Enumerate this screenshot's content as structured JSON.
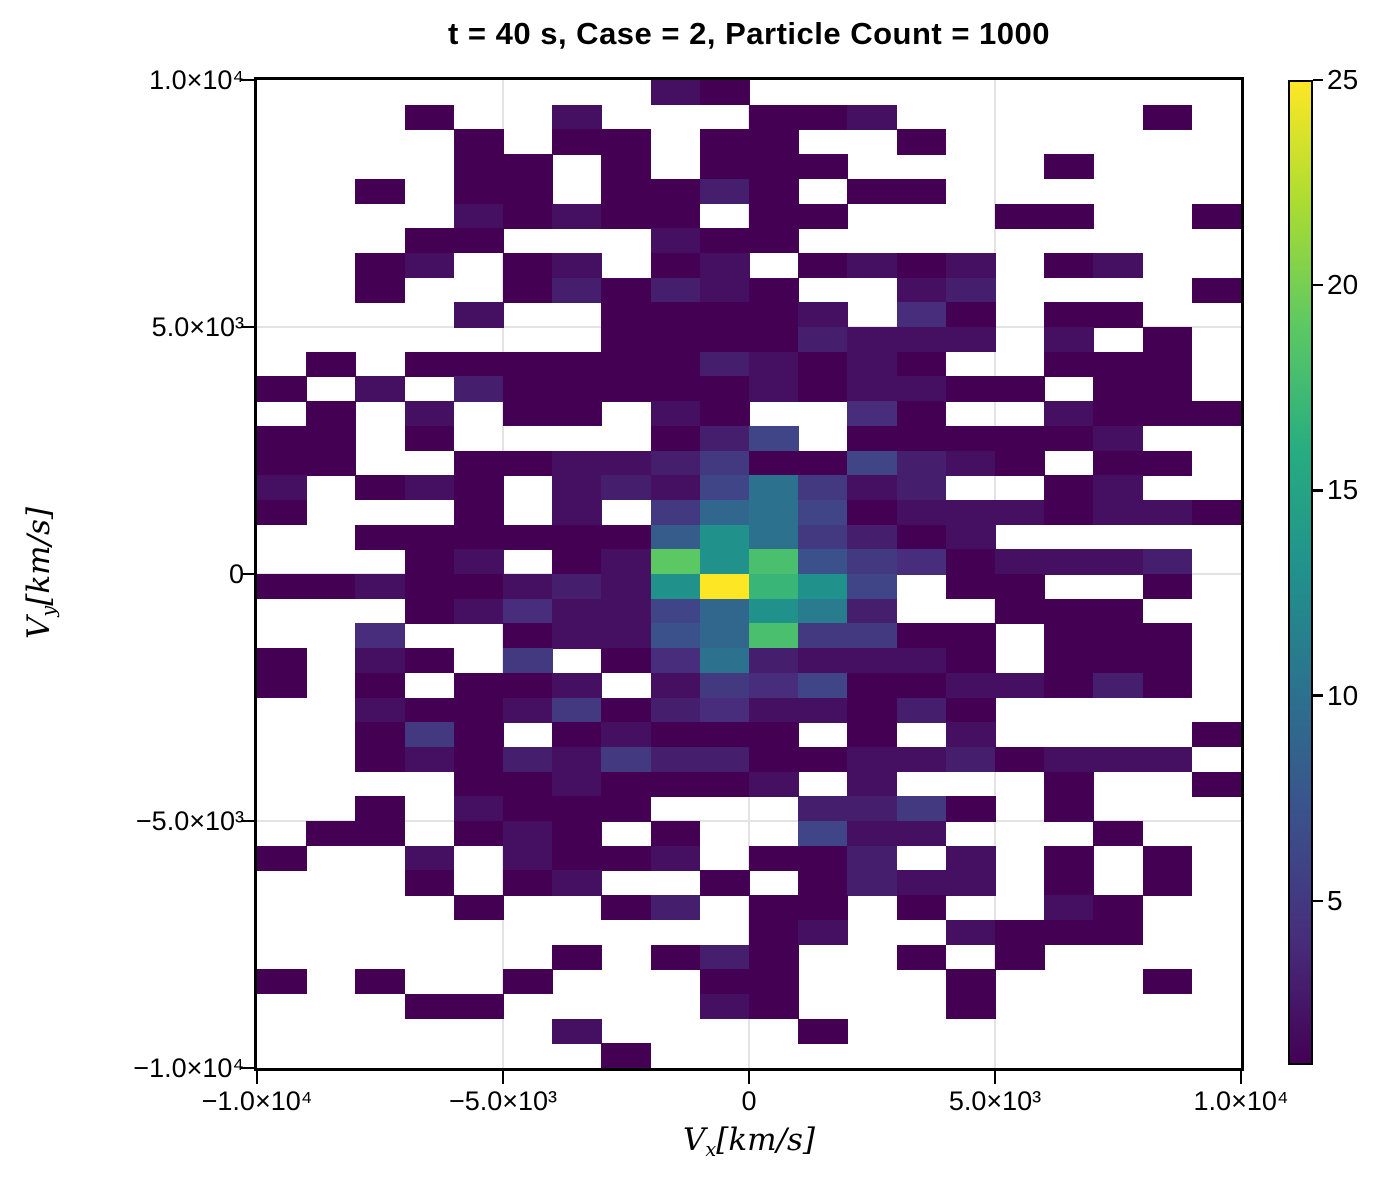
{
  "figure": {
    "title": "t = 40 s, Case = 2, Particle Count = 1000",
    "background": "#ffffff"
  },
  "axes": {
    "x": {
      "var": "V",
      "sub": "x",
      "unit": "[km/s]",
      "ticks": [
        {
          "label": "−1.0×10⁴",
          "value": -10000
        },
        {
          "label": "−5.0×10³",
          "value": -5000
        },
        {
          "label": "0",
          "value": 0
        },
        {
          "label": "5.0×10³",
          "value": 5000
        },
        {
          "label": "1.0×10⁴",
          "value": 10000
        }
      ]
    },
    "y": {
      "var": "V",
      "sub": "y",
      "unit": "[km/s]",
      "ticks": [
        {
          "label": "1.0×10⁴",
          "value": 10000
        },
        {
          "label": "5.0×10³",
          "value": 5000
        },
        {
          "label": "0",
          "value": 0
        },
        {
          "label": "−5.0×10³",
          "value": -5000
        },
        {
          "label": "−1.0×10⁴",
          "value": -10000
        }
      ]
    }
  },
  "colorbar": {
    "min": 1,
    "max": 25,
    "tick_values": [
      25,
      20,
      15,
      10,
      5
    ],
    "tick_labels": [
      "25",
      "20",
      "15",
      "10",
      "5"
    ]
  },
  "colors": {
    "frame": "#000000",
    "grid": "#e3e3e3",
    "text": "#000000",
    "background": "#ffffff",
    "viridis_stops": [
      "#440154",
      "#472d7b",
      "#3b518b",
      "#2c718e",
      "#21918c",
      "#27ad81",
      "#5cc863",
      "#aadc32",
      "#fde725"
    ]
  },
  "chart_data": {
    "type": "heatmap",
    "title": "t = 40 s, Case = 2, Particle Count = 1000",
    "xlabel": "Vx [km/s]",
    "ylabel": "Vy [km/s]",
    "x_range": [
      -10000,
      10000
    ],
    "y_range": [
      -10000,
      10000
    ],
    "x_bins": 20,
    "y_bins": 40,
    "x_tick_labels": [
      "−1.0×10⁴",
      "−5.0×10³",
      "0",
      "5.0×10³",
      "1.0×10⁴"
    ],
    "y_tick_labels": [
      "1.0×10⁴",
      "5.0×10³",
      "0",
      "−5.0×10³",
      "−1.0×10⁴"
    ],
    "grid_on": true,
    "colormap": "viridis",
    "colorbar_range": [
      1,
      25
    ],
    "colorbar_ticks": [
      5,
      10,
      15,
      20,
      25
    ],
    "zero_count_color": "white",
    "counts_grid_rows_top_to_bottom": [
      [
        0,
        0,
        0,
        0,
        0,
        0,
        0,
        0,
        2,
        1,
        0,
        0,
        0,
        0,
        0,
        0,
        0,
        0,
        0,
        0
      ],
      [
        0,
        0,
        0,
        1,
        0,
        0,
        2,
        0,
        0,
        0,
        1,
        1,
        2,
        0,
        0,
        0,
        0,
        0,
        1,
        0
      ],
      [
        0,
        0,
        0,
        0,
        1,
        0,
        1,
        1,
        0,
        1,
        1,
        0,
        0,
        1,
        0,
        0,
        0,
        0,
        0,
        0
      ],
      [
        0,
        0,
        0,
        0,
        1,
        1,
        0,
        1,
        0,
        1,
        1,
        1,
        0,
        0,
        0,
        0,
        1,
        0,
        0,
        0
      ],
      [
        0,
        0,
        1,
        0,
        1,
        1,
        0,
        1,
        1,
        3,
        1,
        0,
        1,
        1,
        0,
        0,
        0,
        0,
        0,
        0
      ],
      [
        0,
        0,
        0,
        0,
        2,
        1,
        2,
        1,
        1,
        0,
        1,
        1,
        0,
        0,
        0,
        1,
        1,
        0,
        0,
        1
      ],
      [
        0,
        0,
        0,
        1,
        1,
        0,
        0,
        0,
        2,
        1,
        1,
        0,
        0,
        0,
        0,
        0,
        0,
        0,
        0,
        0
      ],
      [
        0,
        0,
        1,
        2,
        0,
        1,
        2,
        0,
        1,
        2,
        0,
        1,
        2,
        1,
        2,
        0,
        1,
        2,
        0,
        0
      ],
      [
        0,
        0,
        1,
        0,
        0,
        1,
        3,
        1,
        3,
        2,
        1,
        0,
        0,
        2,
        3,
        0,
        0,
        0,
        0,
        1
      ],
      [
        0,
        0,
        0,
        0,
        2,
        0,
        0,
        1,
        1,
        1,
        1,
        2,
        0,
        4,
        1,
        0,
        1,
        1,
        0,
        0
      ],
      [
        0,
        0,
        0,
        0,
        0,
        0,
        0,
        1,
        1,
        1,
        1,
        3,
        2,
        2,
        2,
        0,
        2,
        0,
        1,
        0
      ],
      [
        0,
        1,
        0,
        1,
        1,
        1,
        1,
        1,
        1,
        3,
        2,
        1,
        2,
        1,
        0,
        0,
        1,
        1,
        1,
        0
      ],
      [
        1,
        0,
        2,
        0,
        3,
        1,
        1,
        1,
        1,
        1,
        2,
        1,
        2,
        2,
        1,
        1,
        0,
        1,
        1,
        0
      ],
      [
        0,
        1,
        0,
        2,
        0,
        1,
        1,
        0,
        2,
        1,
        0,
        0,
        4,
        1,
        0,
        0,
        2,
        1,
        1,
        1
      ],
      [
        1,
        1,
        0,
        1,
        0,
        0,
        0,
        0,
        1,
        3,
        6,
        0,
        1,
        1,
        1,
        1,
        1,
        2,
        0,
        0
      ],
      [
        1,
        1,
        0,
        0,
        1,
        1,
        2,
        2,
        3,
        5,
        1,
        1,
        6,
        3,
        2,
        1,
        0,
        1,
        1,
        0
      ],
      [
        2,
        0,
        1,
        2,
        1,
        0,
        2,
        3,
        2,
        6,
        10,
        5,
        2,
        3,
        0,
        0,
        1,
        2,
        0,
        0
      ],
      [
        1,
        0,
        0,
        0,
        1,
        0,
        2,
        0,
        5,
        9,
        10,
        6,
        1,
        2,
        2,
        2,
        1,
        2,
        2,
        1
      ],
      [
        0,
        0,
        1,
        1,
        1,
        1,
        1,
        1,
        8,
        13,
        10,
        5,
        3,
        1,
        2,
        0,
        0,
        0,
        0,
        0
      ],
      [
        0,
        0,
        0,
        1,
        2,
        0,
        1,
        2,
        19,
        13,
        18,
        7,
        5,
        4,
        1,
        2,
        2,
        2,
        3,
        0
      ],
      [
        1,
        1,
        2,
        1,
        1,
        2,
        3,
        2,
        13,
        25,
        17,
        13,
        6,
        0,
        1,
        1,
        0,
        0,
        1,
        0
      ],
      [
        0,
        0,
        0,
        1,
        2,
        4,
        2,
        2,
        6,
        9,
        13,
        11,
        3,
        0,
        0,
        1,
        1,
        1,
        0,
        0
      ],
      [
        0,
        0,
        4,
        0,
        0,
        1,
        2,
        2,
        7,
        9,
        18,
        5,
        5,
        1,
        1,
        0,
        1,
        1,
        1,
        0
      ],
      [
        1,
        0,
        2,
        1,
        0,
        5,
        0,
        1,
        4,
        10,
        3,
        2,
        2,
        2,
        1,
        0,
        1,
        1,
        1,
        0
      ],
      [
        1,
        0,
        1,
        0,
        1,
        1,
        2,
        0,
        2,
        5,
        4,
        6,
        1,
        1,
        2,
        2,
        1,
        3,
        1,
        0
      ],
      [
        0,
        0,
        2,
        1,
        1,
        2,
        5,
        1,
        3,
        4,
        2,
        2,
        1,
        3,
        1,
        0,
        0,
        0,
        0,
        0
      ],
      [
        0,
        0,
        1,
        5,
        1,
        0,
        1,
        2,
        1,
        1,
        1,
        0,
        1,
        0,
        2,
        0,
        0,
        0,
        0,
        1
      ],
      [
        0,
        0,
        1,
        2,
        1,
        3,
        2,
        5,
        3,
        3,
        1,
        1,
        2,
        2,
        3,
        1,
        2,
        2,
        2,
        0
      ],
      [
        0,
        0,
        0,
        0,
        1,
        1,
        2,
        1,
        1,
        1,
        2,
        0,
        2,
        0,
        0,
        0,
        1,
        0,
        0,
        1
      ],
      [
        0,
        0,
        1,
        0,
        2,
        1,
        1,
        1,
        0,
        0,
        0,
        3,
        3,
        5,
        1,
        0,
        1,
        0,
        0,
        0
      ],
      [
        0,
        1,
        1,
        0,
        1,
        2,
        1,
        0,
        1,
        0,
        0,
        6,
        2,
        2,
        0,
        0,
        0,
        1,
        0,
        0
      ],
      [
        1,
        0,
        0,
        2,
        0,
        2,
        1,
        1,
        2,
        0,
        1,
        1,
        3,
        0,
        2,
        0,
        1,
        0,
        1,
        0
      ],
      [
        0,
        0,
        0,
        1,
        0,
        1,
        2,
        0,
        0,
        1,
        0,
        1,
        3,
        2,
        2,
        0,
        1,
        0,
        1,
        0
      ],
      [
        0,
        0,
        0,
        0,
        1,
        0,
        0,
        1,
        3,
        0,
        1,
        1,
        0,
        1,
        0,
        0,
        2,
        1,
        0,
        0
      ],
      [
        0,
        0,
        0,
        0,
        0,
        0,
        0,
        0,
        0,
        0,
        1,
        2,
        0,
        0,
        2,
        1,
        1,
        1,
        0,
        0
      ],
      [
        0,
        0,
        0,
        0,
        0,
        0,
        1,
        0,
        1,
        3,
        1,
        0,
        0,
        1,
        0,
        1,
        0,
        0,
        0,
        0
      ],
      [
        1,
        0,
        1,
        0,
        0,
        1,
        0,
        0,
        0,
        1,
        1,
        0,
        0,
        0,
        1,
        0,
        0,
        0,
        1,
        0
      ],
      [
        0,
        0,
        0,
        1,
        1,
        0,
        0,
        0,
        0,
        2,
        1,
        0,
        0,
        0,
        1,
        0,
        0,
        0,
        0,
        0
      ],
      [
        0,
        0,
        0,
        0,
        0,
        0,
        2,
        0,
        0,
        0,
        0,
        1,
        0,
        0,
        0,
        0,
        0,
        0,
        0,
        0
      ],
      [
        0,
        0,
        0,
        0,
        0,
        0,
        0,
        1,
        0,
        0,
        0,
        0,
        0,
        0,
        0,
        0,
        0,
        0,
        0,
        0
      ]
    ]
  }
}
